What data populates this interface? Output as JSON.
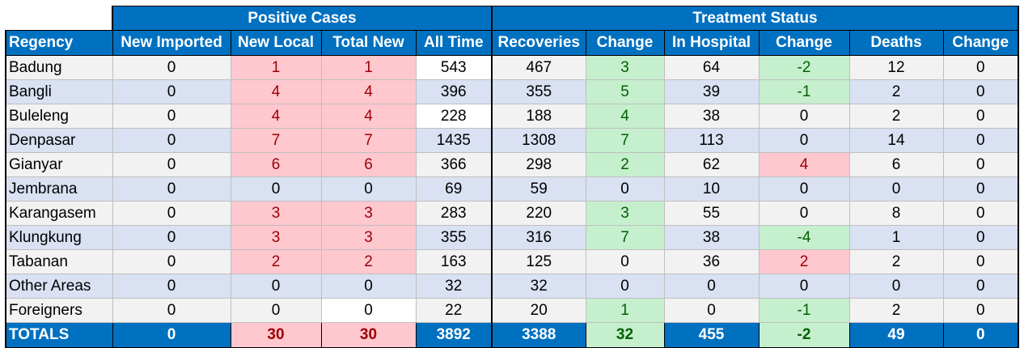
{
  "groups": {
    "positive": "Positive Cases",
    "treatment": "Treatment Status"
  },
  "columns": [
    "Regency",
    "New Imported",
    "New Local",
    "Total New",
    "All Time",
    "Recoveries",
    "Change",
    "In Hospital",
    "Change",
    "Deaths",
    "Change"
  ],
  "rows": [
    {
      "name": "Badung",
      "v": [
        "0",
        "1",
        "1",
        "543",
        "467",
        "3",
        "64",
        "-2",
        "12",
        "0"
      ]
    },
    {
      "name": "Bangli",
      "v": [
        "0",
        "4",
        "4",
        "396",
        "355",
        "5",
        "39",
        "-1",
        "2",
        "0"
      ]
    },
    {
      "name": "Buleleng",
      "v": [
        "0",
        "4",
        "4",
        "228",
        "188",
        "4",
        "38",
        "0",
        "2",
        "0"
      ]
    },
    {
      "name": "Denpasar",
      "v": [
        "0",
        "7",
        "7",
        "1435",
        "1308",
        "7",
        "113",
        "0",
        "14",
        "0"
      ]
    },
    {
      "name": "Gianyar",
      "v": [
        "0",
        "6",
        "6",
        "366",
        "298",
        "2",
        "62",
        "4",
        "6",
        "0"
      ]
    },
    {
      "name": "Jembrana",
      "v": [
        "0",
        "0",
        "0",
        "69",
        "59",
        "0",
        "10",
        "0",
        "0",
        "0"
      ]
    },
    {
      "name": "Karangasem",
      "v": [
        "0",
        "3",
        "3",
        "283",
        "220",
        "3",
        "55",
        "0",
        "8",
        "0"
      ]
    },
    {
      "name": "Klungkung",
      "v": [
        "0",
        "3",
        "3",
        "355",
        "316",
        "7",
        "38",
        "-4",
        "1",
        "0"
      ]
    },
    {
      "name": "Tabanan",
      "v": [
        "0",
        "2",
        "2",
        "163",
        "125",
        "0",
        "36",
        "2",
        "2",
        "0"
      ]
    },
    {
      "name": "Other Areas",
      "v": [
        "0",
        "0",
        "0",
        "32",
        "32",
        "0",
        "0",
        "0",
        "0",
        "0"
      ]
    },
    {
      "name": "Foreigners",
      "v": [
        "0",
        "0",
        "0",
        "22",
        "20",
        "1",
        "0",
        "-1",
        "2",
        "0"
      ]
    }
  ],
  "totals": {
    "name": "TOTALS",
    "v": [
      "0",
      "30",
      "30",
      "3892",
      "3388",
      "32",
      "455",
      "-2",
      "49",
      "0"
    ]
  },
  "colors": {
    "header": "#0070c0",
    "increase": "#ffc7ce",
    "decrease": "#c6efce"
  }
}
